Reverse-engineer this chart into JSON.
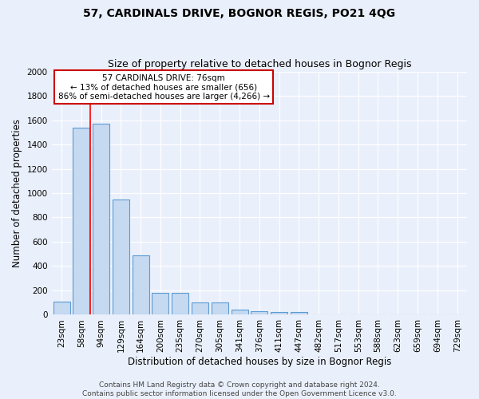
{
  "title": "57, CARDINALS DRIVE, BOGNOR REGIS, PO21 4QG",
  "subtitle": "Size of property relative to detached houses in Bognor Regis",
  "xlabel": "Distribution of detached houses by size in Bognor Regis",
  "ylabel": "Number of detached properties",
  "categories": [
    "23sqm",
    "58sqm",
    "94sqm",
    "129sqm",
    "164sqm",
    "200sqm",
    "235sqm",
    "270sqm",
    "305sqm",
    "341sqm",
    "376sqm",
    "411sqm",
    "447sqm",
    "482sqm",
    "517sqm",
    "553sqm",
    "588sqm",
    "623sqm",
    "659sqm",
    "694sqm",
    "729sqm"
  ],
  "values": [
    110,
    1540,
    1570,
    945,
    490,
    180,
    180,
    100,
    100,
    40,
    30,
    20,
    20,
    0,
    0,
    0,
    0,
    0,
    0,
    0,
    0
  ],
  "bar_color": "#c5d9f0",
  "bar_edge_color": "#5b9bd5",
  "background_color": "#eaf0fb",
  "grid_color": "#ffffff",
  "red_line_x": 1.47,
  "annotation_text": "57 CARDINALS DRIVE: 76sqm\n← 13% of detached houses are smaller (656)\n86% of semi-detached houses are larger (4,266) →",
  "annotation_box_color": "#ffffff",
  "annotation_box_edge": "#cc0000",
  "ylim": [
    0,
    2000
  ],
  "yticks": [
    0,
    200,
    400,
    600,
    800,
    1000,
    1200,
    1400,
    1600,
    1800,
    2000
  ],
  "footer": "Contains HM Land Registry data © Crown copyright and database right 2024.\nContains public sector information licensed under the Open Government Licence v3.0.",
  "title_fontsize": 10,
  "subtitle_fontsize": 9,
  "label_fontsize": 8.5,
  "tick_fontsize": 7.5,
  "footer_fontsize": 6.5
}
